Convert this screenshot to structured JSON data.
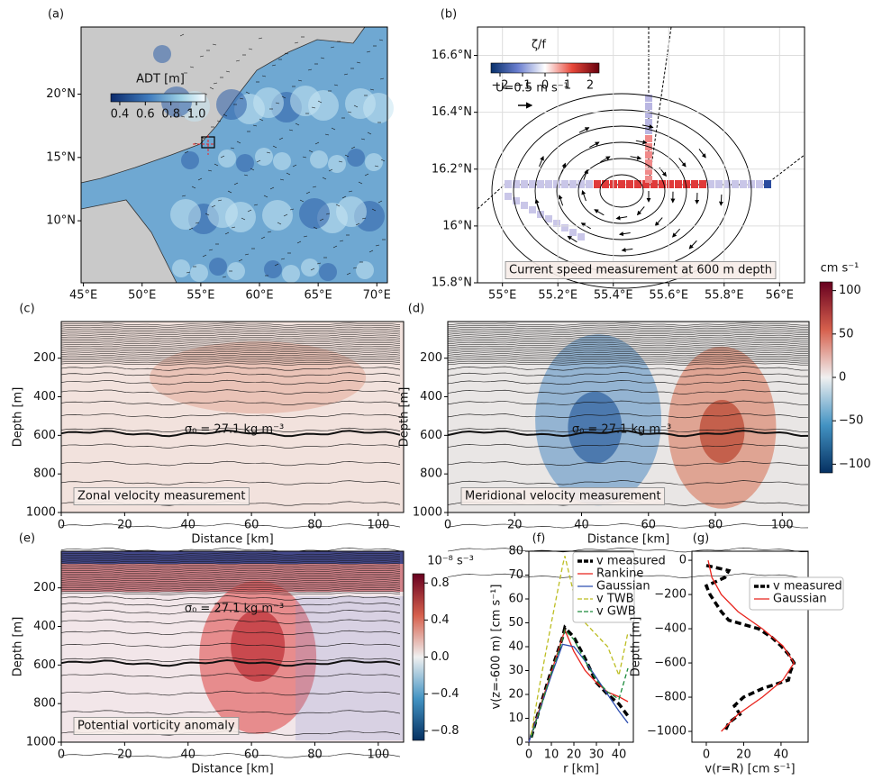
{
  "chart_data": [
    {
      "type": "map",
      "panel_label": "(a)",
      "xlim": [
        44.8,
        70.9
      ],
      "ylim": [
        5.1,
        25.3
      ],
      "xticks": [
        {
          "value": 45,
          "label": "45°E"
        },
        {
          "value": 50,
          "label": "50°E"
        },
        {
          "value": 55,
          "label": "55°E"
        },
        {
          "value": 60,
          "label": "60°E"
        },
        {
          "value": 65,
          "label": "65°E"
        },
        {
          "value": 70,
          "label": "70°E"
        }
      ],
      "yticks": [
        {
          "value": 10,
          "label": "10°N"
        },
        {
          "value": 15,
          "label": "15°N"
        },
        {
          "value": 20,
          "label": "20°N"
        }
      ],
      "colorbar": {
        "label": "ADT [m]",
        "lim": [
          0.33,
          1.07
        ],
        "ticks": [
          0.4,
          0.6,
          0.8,
          {
            "value": 1,
            "label": "1.0"
          }
        ]
      }
    },
    {
      "type": "map",
      "panel_label": "(b)",
      "xlim": [
        54.91,
        56.09
      ],
      "ylim": [
        15.8,
        16.7
      ],
      "grid": true,
      "xticks": [
        {
          "value": 55,
          "label": "55°E"
        },
        {
          "value": 55.2,
          "label": "55.2°E"
        },
        {
          "value": 55.4,
          "label": "55.4°E"
        },
        {
          "value": 55.6,
          "label": "55.6°E"
        },
        {
          "value": 55.8,
          "label": "55.8°E"
        },
        {
          "value": 56,
          "label": "56°E"
        }
      ],
      "yticks": [
        {
          "value": 15.8,
          "label": "15.8°N"
        },
        {
          "value": 16,
          "label": "16°N"
        },
        {
          "value": 16.2,
          "label": "16.2°N"
        },
        {
          "value": 16.4,
          "label": "16.4°N"
        },
        {
          "value": 16.6,
          "label": "16.6°N"
        }
      ],
      "colorbar": {
        "label": "ζ/f",
        "lim": [
          -2.4,
          2.4
        ],
        "ticks": [
          {
            "value": -2,
            "label": "−2"
          },
          {
            "value": -1,
            "label": "−1"
          },
          0,
          1,
          2
        ]
      },
      "annotations": [
        "U=0.5 m s⁻¹",
        "Current speed measurement at 600 m depth"
      ]
    },
    {
      "type": "section",
      "panel_label": "(c)",
      "xlabel": "Distance [km]",
      "ylabel": "Depth [m]",
      "xlim": [
        0,
        108
      ],
      "ylim": [
        1000,
        10
      ],
      "xticks": [
        0,
        20,
        40,
        60,
        80,
        100
      ],
      "yticks": [
        200,
        400,
        600,
        800,
        1000
      ],
      "annotations": [
        "σ₀ = 27.1 kg m⁻³",
        "Zonal velocity measurement"
      ]
    },
    {
      "type": "section",
      "panel_label": "(d)",
      "xlabel": "Distance [km]",
      "ylabel": "Depth [m]",
      "xlim": [
        0,
        108
      ],
      "ylim": [
        1000,
        10
      ],
      "xticks": [
        0,
        20,
        40,
        60,
        80,
        100
      ],
      "yticks": [
        200,
        400,
        600,
        800,
        1000
      ],
      "annotations": [
        "σ₀ = 27.1 kg m⁻³",
        "Meridional velocity measurement"
      ],
      "colorbar": {
        "label": "cm s⁻¹",
        "lim": [
          -110,
          110
        ],
        "ticks": [
          {
            "value": -100,
            "label": "−100"
          },
          {
            "value": -50,
            "label": "−50"
          },
          0,
          50,
          100
        ]
      }
    },
    {
      "type": "section",
      "panel_label": "(e)",
      "xlabel": "Distance [km]",
      "ylabel": "Depth [m]",
      "xlim": [
        0,
        108
      ],
      "ylim": [
        1000,
        10
      ],
      "xticks": [
        0,
        20,
        40,
        60,
        80,
        100
      ],
      "yticks": [
        200,
        400,
        600,
        800,
        1000
      ],
      "annotations": [
        "σ₀ = 27.1 kg m⁻³",
        "Potential vorticity anomaly"
      ],
      "colorbar": {
        "label": "10⁻⁸ s⁻³",
        "lim": [
          -0.9,
          0.9
        ],
        "ticks": [
          {
            "value": -0.8,
            "label": "−0.8"
          },
          {
            "value": -0.4,
            "label": "−0.4"
          },
          {
            "value": 0,
            "label": "0.0"
          },
          0.4,
          0.8
        ]
      }
    },
    {
      "type": "line",
      "panel_label": "(f)",
      "xlabel": "r [km]",
      "ylabel": "v(z=-600 m) [cm s⁻¹]",
      "xlim": [
        0,
        46.4
      ],
      "ylim": [
        0,
        80
      ],
      "xticks": [
        0,
        10,
        20,
        30,
        40
      ],
      "yticks": [
        0,
        10,
        20,
        30,
        40,
        50,
        60,
        70,
        80
      ],
      "series": [
        {
          "name": "v measured",
          "color": "#000000",
          "linestyle": "dashed",
          "linewidth": 3.5,
          "x": [
            1,
            5,
            10,
            15,
            16,
            20,
            25,
            30,
            35,
            40,
            44
          ],
          "values": [
            2,
            15,
            30,
            44,
            48,
            44,
            35,
            25,
            20,
            16,
            11
          ]
        },
        {
          "name": "Rankine",
          "color": "#e8231c",
          "linestyle": "solid",
          "linewidth": 1.3,
          "x": [
            0,
            16,
            20,
            25,
            30,
            35,
            40,
            44
          ],
          "values": [
            0,
            47,
            38,
            30,
            25,
            21,
            19,
            17
          ]
        },
        {
          "name": "Gaussian",
          "color": "#2f4fb0",
          "linestyle": "solid",
          "linewidth": 1.3,
          "x": [
            0,
            5,
            10,
            15,
            20,
            25,
            30,
            35,
            40,
            44
          ],
          "values": [
            0,
            14,
            28,
            41,
            40,
            34,
            27,
            20,
            13,
            8
          ]
        },
        {
          "name": "v TWB",
          "color": "#bcbd22",
          "linestyle": "dashed",
          "linewidth": 1.3,
          "x": [
            1,
            5,
            10,
            15,
            16,
            20,
            25,
            30,
            35,
            40,
            44
          ],
          "values": [
            3,
            25,
            50,
            74,
            78,
            62,
            50,
            45,
            40,
            28,
            46
          ]
        },
        {
          "name": "v GWB",
          "color": "#1a8a3a",
          "linestyle": "dashed",
          "linewidth": 1.3,
          "x": [
            1,
            5,
            10,
            15,
            16,
            20,
            25,
            30,
            35,
            40,
            44
          ],
          "values": [
            2,
            14,
            29,
            43,
            47,
            43,
            34,
            26,
            21,
            18,
            31
          ]
        }
      ]
    },
    {
      "type": "line",
      "panel_label": "(g)",
      "xlabel": "v(r=R) [cm s⁻¹]",
      "ylabel": "Depth [m]",
      "xlim": [
        -7.7,
        54.5
      ],
      "ylim": [
        -1063,
        53
      ],
      "xticks": [
        0,
        20,
        40
      ],
      "yticks": [
        0,
        {
          "value": -200,
          "label": "−200"
        },
        {
          "value": -400,
          "label": "−400"
        },
        {
          "value": -600,
          "label": "−600"
        },
        {
          "value": -800,
          "label": "−800"
        },
        {
          "value": -1000,
          "label": "−1000"
        }
      ],
      "series": [
        {
          "name": "v measured",
          "color": "#000000",
          "linestyle": "dashed",
          "linewidth": 3.5,
          "x": [
            0,
            12,
            10,
            0,
            2,
            5,
            8,
            12,
            28,
            35,
            40,
            44,
            47,
            45,
            44,
            30,
            20,
            15,
            18,
            12,
            10
          ],
          "y": [
            -30,
            -60,
            -100,
            -150,
            -200,
            -250,
            -300,
            -350,
            -400,
            -450,
            -500,
            -550,
            -600,
            -650,
            -700,
            -750,
            -800,
            -850,
            -900,
            -950,
            -1000
          ]
        },
        {
          "name": "Gaussian",
          "color": "#e8231c",
          "linestyle": "solid",
          "linewidth": 1.3,
          "x": [
            1,
            3,
            8,
            17,
            30,
            41,
            47,
            41,
            30,
            17,
            8
          ],
          "y": [
            0,
            -100,
            -200,
            -300,
            -400,
            -500,
            -600,
            -700,
            -800,
            -900,
            -1000
          ]
        }
      ]
    }
  ]
}
